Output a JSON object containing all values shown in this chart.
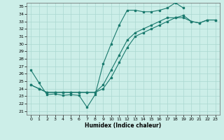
{
  "xlabel": "Humidex (Indice chaleur)",
  "bg_color": "#cceee8",
  "grid_color": "#aad8d0",
  "line_color": "#1a7a6e",
  "xlim": [
    -0.5,
    23.5
  ],
  "ylim": [
    20.5,
    35.5
  ],
  "xticks": [
    0,
    1,
    2,
    3,
    4,
    5,
    6,
    7,
    8,
    9,
    10,
    11,
    12,
    13,
    14,
    15,
    16,
    17,
    18,
    19,
    20,
    21,
    22,
    23
  ],
  "yticks": [
    21,
    22,
    23,
    24,
    25,
    26,
    27,
    28,
    29,
    30,
    31,
    32,
    33,
    34,
    35
  ],
  "line1_x": [
    0,
    1,
    2,
    3,
    4,
    5,
    6,
    7,
    8,
    9,
    10,
    11,
    12,
    13,
    14,
    15,
    16,
    17,
    18,
    19
  ],
  "line1_y": [
    26.5,
    24.8,
    23.2,
    23.3,
    23.1,
    23.2,
    23.1,
    21.5,
    23.2,
    27.3,
    30.0,
    32.5,
    34.5,
    34.5,
    34.3,
    34.3,
    34.5,
    34.8,
    35.5,
    34.8
  ],
  "line2_x": [
    0,
    1,
    2,
    3,
    4,
    5,
    6,
    7,
    8,
    9,
    10,
    11,
    12,
    13,
    14,
    15,
    16,
    17,
    18,
    19,
    20,
    21,
    22,
    23
  ],
  "line2_y": [
    24.5,
    24.0,
    23.5,
    23.5,
    23.5,
    23.5,
    23.5,
    23.5,
    23.5,
    24.5,
    26.5,
    28.5,
    30.5,
    31.5,
    32.0,
    32.5,
    33.0,
    33.5,
    33.5,
    33.8,
    33.0,
    32.8,
    33.2,
    33.2
  ],
  "line3_x": [
    0,
    1,
    2,
    3,
    4,
    5,
    6,
    7,
    8,
    9,
    10,
    11,
    12,
    13,
    14,
    15,
    16,
    17,
    18,
    19,
    20,
    21,
    22,
    23
  ],
  "line3_y": [
    24.5,
    24.0,
    23.5,
    23.5,
    23.5,
    23.5,
    23.5,
    23.5,
    23.5,
    24.0,
    25.5,
    27.5,
    29.5,
    31.0,
    31.5,
    32.0,
    32.5,
    33.0,
    33.5,
    33.5,
    33.0,
    32.8,
    33.2,
    33.2
  ]
}
